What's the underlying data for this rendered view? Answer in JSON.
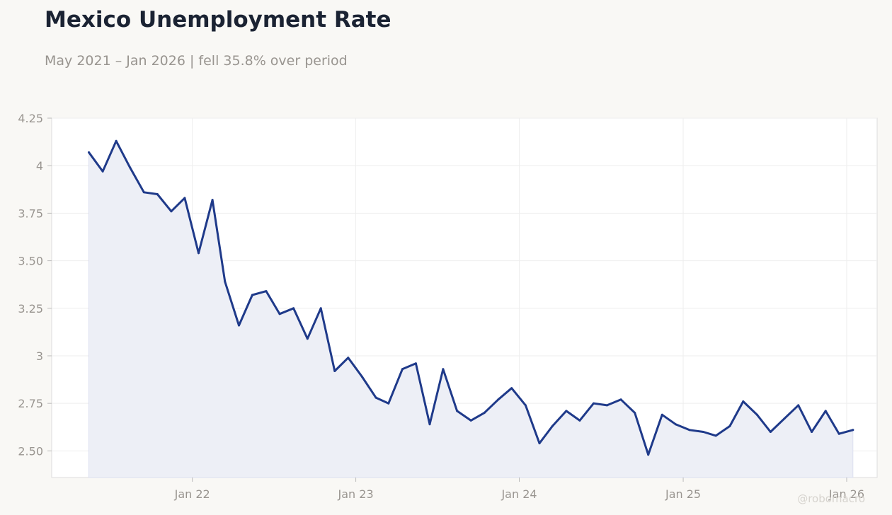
{
  "header": {
    "title": "Mexico Unemployment Rate",
    "subtitle": "May 2021 – Jan 2026 | fell 35.8% over period"
  },
  "watermark": "@robomacro",
  "colors": {
    "background": "#f9f8f5",
    "plot_background": "#ffffff",
    "line": "#1f3a8a",
    "area_fill": "#eceef5",
    "grid": "#eeeeee",
    "axis_text": "#999590",
    "title": "#1b2333"
  },
  "chart_data": {
    "type": "area",
    "title": "Mexico Unemployment Rate",
    "subtitle": "May 2021 – Jan 2026 | fell 35.8% over period",
    "xlabel": "",
    "ylabel": "",
    "ylim": [
      2.36,
      4.25
    ],
    "xlim": [
      "2021-02-21",
      "2026-03-10"
    ],
    "y_ticks": [
      2.5,
      2.75,
      3,
      3.25,
      3.5,
      3.75,
      4,
      4.25
    ],
    "y_tick_labels": [
      "2.50",
      "2.75",
      "3",
      "3.25",
      "3.50",
      "3.75",
      "4",
      "4.25"
    ],
    "x_ticks": [
      "2022-01-01",
      "2023-01-01",
      "2024-01-01",
      "2025-01-01",
      "2026-01-01"
    ],
    "x_tick_labels": [
      "Jan 22",
      "Jan 23",
      "Jan 24",
      "Jan 25",
      "Jan 26"
    ],
    "grid": true,
    "legend": "none",
    "series": [
      {
        "x": [
          "2021-05",
          "2021-06",
          "2021-07",
          "2021-08",
          "2021-09",
          "2021-10",
          "2021-11",
          "2021-12",
          "2022-01",
          "2022-02",
          "2022-03",
          "2022-04",
          "2022-05",
          "2022-06",
          "2022-07",
          "2022-08",
          "2022-09",
          "2022-10",
          "2022-11",
          "2022-12",
          "2023-01",
          "2023-02",
          "2023-03",
          "2023-04",
          "2023-05",
          "2023-06",
          "2023-07",
          "2023-08",
          "2023-09",
          "2023-10",
          "2023-11",
          "2023-12",
          "2024-01",
          "2024-02",
          "2024-03",
          "2024-04",
          "2024-05",
          "2024-06",
          "2024-07",
          "2024-08",
          "2024-09",
          "2024-10",
          "2024-11",
          "2024-12",
          "2025-01",
          "2025-02",
          "2025-03",
          "2025-04",
          "2025-05",
          "2025-06",
          "2025-07",
          "2025-08",
          "2025-09",
          "2025-10",
          "2025-11",
          "2025-12",
          "2026-01"
        ],
        "values": [
          4.07,
          3.97,
          4.13,
          3.99,
          3.86,
          3.85,
          3.76,
          3.83,
          3.54,
          3.82,
          3.39,
          3.16,
          3.32,
          3.34,
          3.22,
          3.25,
          3.09,
          3.25,
          2.92,
          2.99,
          2.89,
          2.78,
          2.75,
          2.93,
          2.96,
          2.64,
          2.93,
          2.71,
          2.66,
          2.7,
          2.77,
          2.83,
          2.74,
          2.54,
          2.63,
          2.71,
          2.66,
          2.75,
          2.74,
          2.77,
          2.7,
          2.48,
          2.69,
          2.64,
          2.61,
          2.6,
          2.58,
          2.63,
          2.76,
          2.69,
          2.6,
          2.67,
          2.74,
          2.6,
          2.71,
          2.59,
          2.61
        ]
      }
    ]
  }
}
